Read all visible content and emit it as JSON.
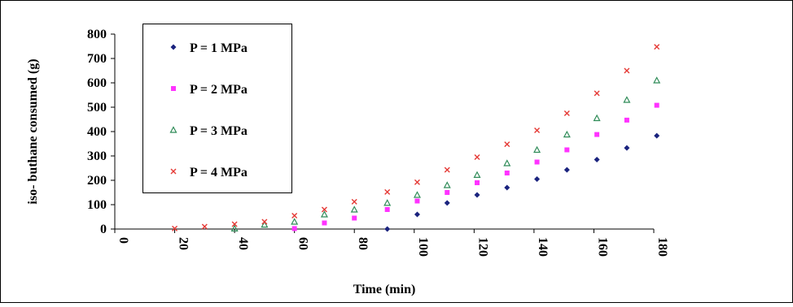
{
  "chart_data": {
    "type": "scatter",
    "title": "",
    "xlabel": "Time (min)",
    "ylabel": "iso- buthane consumed (g)",
    "xlim": [
      0,
      180
    ],
    "ylim": [
      0,
      800
    ],
    "x_ticks": [
      "0",
      "20",
      "40",
      "60",
      "80",
      "100",
      "120",
      "140",
      "160",
      "180"
    ],
    "y_ticks": [
      "0",
      "100",
      "200",
      "300",
      "400",
      "500",
      "600",
      "700",
      "800"
    ],
    "grid": false,
    "legend_position": "top-left",
    "series": [
      {
        "name": "P = 1 MPa",
        "marker": "diamond",
        "color": "#1a237e",
        "x": [
          91,
          101,
          111,
          121,
          131,
          141,
          151,
          161,
          171,
          181
        ],
        "y": [
          0,
          60,
          107,
          140,
          170,
          205,
          243,
          285,
          333,
          383
        ]
      },
      {
        "name": "P = 2 MPa",
        "marker": "square",
        "color": "#ff33ff",
        "x": [
          60,
          70,
          80,
          91,
          101,
          111,
          121,
          131,
          141,
          151,
          161,
          171,
          181
        ],
        "y": [
          2,
          25,
          45,
          80,
          115,
          150,
          190,
          230,
          275,
          325,
          388,
          447,
          508
        ]
      },
      {
        "name": "P = 3 MPa",
        "marker": "triangle",
        "color": "#2e8b57",
        "x": [
          40,
          50,
          60,
          70,
          80,
          91,
          101,
          111,
          121,
          131,
          141,
          151,
          161,
          171,
          181
        ],
        "y": [
          2,
          18,
          30,
          60,
          80,
          107,
          140,
          180,
          222,
          270,
          325,
          388,
          455,
          530,
          610
        ]
      },
      {
        "name": "P = 4 MPa",
        "marker": "x",
        "color": "#e53935",
        "x": [
          20,
          30,
          40,
          50,
          60,
          70,
          80,
          91,
          101,
          111,
          121,
          131,
          141,
          151,
          161,
          171,
          181
        ],
        "y": [
          2,
          10,
          20,
          30,
          55,
          80,
          112,
          152,
          192,
          243,
          295,
          348,
          405,
          475,
          557,
          650,
          748
        ]
      }
    ]
  }
}
